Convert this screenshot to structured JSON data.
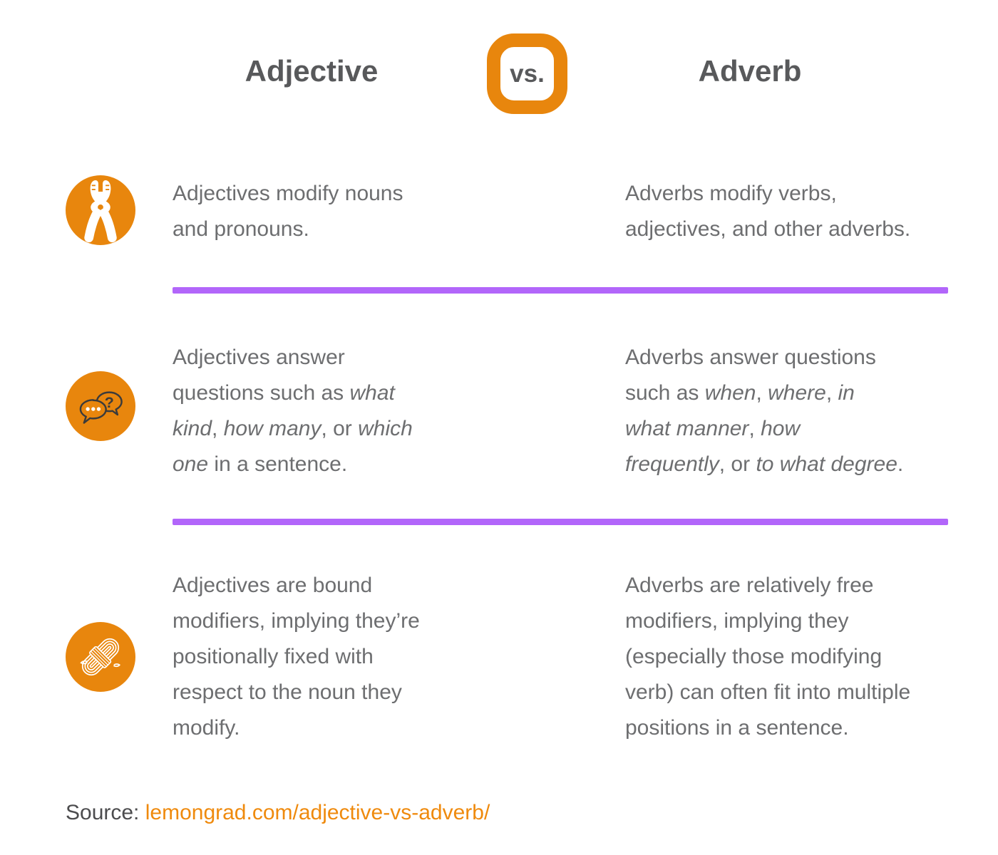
{
  "colors": {
    "orange": "#E8860D",
    "purple": "#B266FA",
    "heading": "#58595B",
    "body": "#6D6E70",
    "source_label": "#4C4C4E",
    "link": "#EF8A0D"
  },
  "header": {
    "left_title": "Adjective",
    "badge": "vs.",
    "right_title": "Adverb"
  },
  "rows": [
    {
      "icon": "pliers-icon",
      "left": [
        {
          "t": "Adjectives modify nouns\nand pronouns."
        }
      ],
      "right": [
        {
          "t": "Adverbs modify verbs,\nadjectives, and other adverbs."
        }
      ]
    },
    {
      "icon": "speech-bubbles-icon",
      "left": [
        {
          "t": "Adjectives answer\nquestions such as "
        },
        {
          "t": "what\nkind",
          "i": true
        },
        {
          "t": ", "
        },
        {
          "t": "how many",
          "i": true
        },
        {
          "t": ", or "
        },
        {
          "t": "which\none",
          "i": true
        },
        {
          "t": " in a sentence."
        }
      ],
      "right": [
        {
          "t": "Adverbs answer questions\nsuch as "
        },
        {
          "t": "when",
          "i": true
        },
        {
          "t": ", "
        },
        {
          "t": "where",
          "i": true
        },
        {
          "t": ", "
        },
        {
          "t": "in\nwhat manner",
          "i": true
        },
        {
          "t": ", "
        },
        {
          "t": "how\nfrequently",
          "i": true
        },
        {
          "t": ", or "
        },
        {
          "t": "to what degree",
          "i": true
        },
        {
          "t": "."
        }
      ]
    },
    {
      "icon": "rope-icon",
      "left": [
        {
          "t": "Adjectives are bound\nmodifiers, implying they’re\npositionally fixed with\nrespect to the noun they\nmodify."
        }
      ],
      "right": [
        {
          "t": "Adverbs are relatively free\nmodifiers, implying they\n(especially those modifying\nverb) can often fit into multiple\npositions in a sentence."
        }
      ]
    }
  ],
  "source": {
    "label": "Source: ",
    "link_text": "lemongrad.com/adjective-vs-adverb/"
  }
}
